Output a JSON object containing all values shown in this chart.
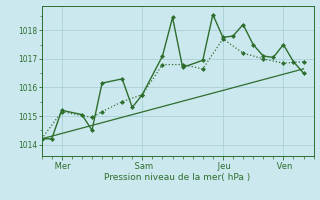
{
  "title": "",
  "xlabel": "Pression niveau de la mer( hPa )",
  "ylabel": "",
  "bg_color": "#cce8ef",
  "grid_color": "#aacfd8",
  "line_color": "#2d6e2d",
  "ylim": [
    1013.6,
    1018.85
  ],
  "yticks": [
    1014,
    1015,
    1016,
    1017,
    1018
  ],
  "x_tick_labels": [
    " Mer",
    " Sam",
    " Jeu",
    " Ven"
  ],
  "x_tick_positions": [
    2,
    10,
    18,
    24
  ],
  "xlim": [
    0,
    27
  ],
  "series1_x": [
    0,
    1,
    2,
    4,
    5,
    6,
    8,
    9,
    10,
    12,
    13,
    14,
    16,
    17,
    18,
    19,
    20,
    21,
    22,
    23,
    24,
    25,
    26
  ],
  "series1_y": [
    1014.2,
    1014.2,
    1015.2,
    1015.05,
    1014.5,
    1016.15,
    1016.3,
    1015.3,
    1015.75,
    1017.1,
    1018.45,
    1016.7,
    1016.95,
    1018.55,
    1017.75,
    1017.8,
    1018.2,
    1017.5,
    1017.1,
    1017.05,
    1017.5,
    1016.9,
    1016.5
  ],
  "series2_x": [
    0,
    2,
    5,
    6,
    8,
    10,
    12,
    14,
    16,
    18,
    20,
    22,
    24,
    26
  ],
  "series2_y": [
    1014.2,
    1015.15,
    1014.95,
    1015.15,
    1015.5,
    1015.75,
    1016.8,
    1016.8,
    1016.65,
    1017.7,
    1017.2,
    1017.0,
    1016.85,
    1016.9
  ],
  "series3_x": [
    0,
    26
  ],
  "series3_y": [
    1014.2,
    1016.65
  ],
  "marker_size": 2.5,
  "linewidth1": 1.0,
  "linewidth2": 0.9,
  "linewidth3": 0.9
}
